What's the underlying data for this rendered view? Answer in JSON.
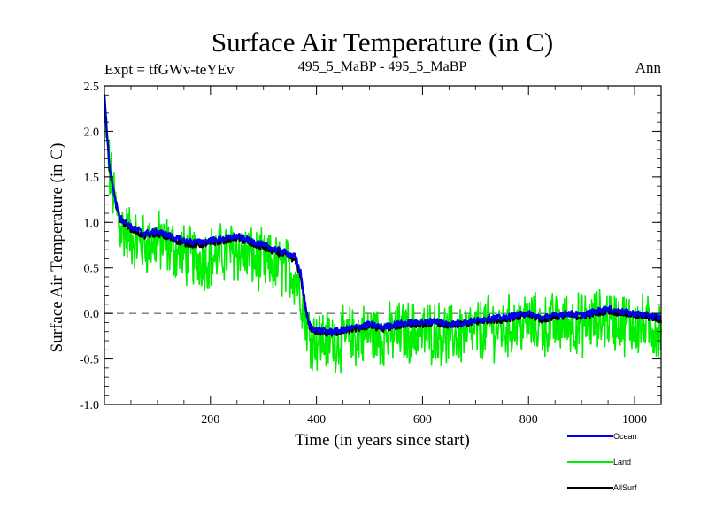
{
  "chart_data": {
    "type": "line",
    "title": "Surface Air Temperature (in C)",
    "subtitle_left": "Expt = tfGWv-teYEv",
    "subtitle_center": "495_5_MaBP - 495_5_MaBP",
    "subtitle_right": "Ann",
    "xlabel": "Time (in years since start)",
    "ylabel": "Surface Air Temperature (in C)",
    "xlim": [
      0,
      1050
    ],
    "ylim": [
      -1.0,
      2.5
    ],
    "xticks": [
      200,
      400,
      600,
      800,
      1000
    ],
    "yticks": [
      -1.0,
      -0.5,
      0.0,
      0.5,
      1.0,
      1.5,
      2.0,
      2.5
    ],
    "ytick_labels": [
      "-1.0",
      "-0.5",
      "0.0",
      "0.5",
      "1.0",
      "1.5",
      "2.0",
      "2.5"
    ],
    "zero_line": 0.0,
    "legend_placement": "bottom-right",
    "series": [
      {
        "name": "Ocean",
        "color": "#0000ee",
        "x": [
          0,
          5,
          10,
          20,
          30,
          50,
          75,
          100,
          125,
          150,
          175,
          200,
          225,
          250,
          275,
          300,
          325,
          350,
          360,
          370,
          380,
          385,
          390,
          400,
          425,
          450,
          475,
          500,
          525,
          550,
          575,
          600,
          625,
          650,
          675,
          700,
          725,
          750,
          775,
          800,
          825,
          850,
          875,
          900,
          925,
          950,
          975,
          1000,
          1025,
          1050
        ],
        "values": [
          2.4,
          1.95,
          1.6,
          1.25,
          1.05,
          0.95,
          0.88,
          0.9,
          0.85,
          0.8,
          0.78,
          0.8,
          0.82,
          0.85,
          0.8,
          0.75,
          0.7,
          0.65,
          0.62,
          0.45,
          0.05,
          -0.1,
          -0.15,
          -0.18,
          -0.2,
          -0.18,
          -0.15,
          -0.12,
          -0.15,
          -0.12,
          -0.1,
          -0.1,
          -0.08,
          -0.12,
          -0.1,
          -0.08,
          -0.05,
          -0.05,
          -0.02,
          0.0,
          -0.05,
          -0.02,
          0.0,
          -0.02,
          0.02,
          0.05,
          0.02,
          0.0,
          -0.02,
          -0.05
        ]
      },
      {
        "name": "Land",
        "color": "#00ee00",
        "x": [
          0,
          5,
          10,
          20,
          30,
          50,
          75,
          100,
          125,
          150,
          175,
          200,
          225,
          250,
          275,
          300,
          325,
          350,
          360,
          370,
          380,
          385,
          390,
          400,
          425,
          450,
          475,
          500,
          525,
          550,
          575,
          600,
          625,
          650,
          675,
          700,
          725,
          750,
          775,
          800,
          825,
          850,
          875,
          900,
          925,
          950,
          975,
          1000,
          1025,
          1050
        ],
        "values": [
          2.3,
          1.9,
          1.55,
          1.2,
          0.95,
          0.85,
          0.75,
          0.8,
          0.72,
          0.65,
          0.6,
          0.62,
          0.66,
          0.7,
          0.62,
          0.55,
          0.52,
          0.48,
          0.42,
          0.25,
          -0.05,
          -0.2,
          -0.25,
          -0.28,
          -0.3,
          -0.28,
          -0.25,
          -0.22,
          -0.25,
          -0.22,
          -0.2,
          -0.22,
          -0.2,
          -0.25,
          -0.22,
          -0.2,
          -0.15,
          -0.17,
          -0.12,
          -0.1,
          -0.15,
          -0.12,
          -0.1,
          -0.12,
          -0.08,
          -0.05,
          -0.1,
          -0.12,
          -0.15,
          -0.18
        ],
        "noise_amplitude": 0.3
      },
      {
        "name": "AllSurf",
        "color": "#000000",
        "x": [
          0,
          5,
          10,
          20,
          30,
          50,
          75,
          100,
          125,
          150,
          175,
          200,
          225,
          250,
          275,
          300,
          325,
          350,
          360,
          370,
          380,
          385,
          390,
          400,
          425,
          450,
          475,
          500,
          525,
          550,
          575,
          600,
          625,
          650,
          675,
          700,
          725,
          750,
          775,
          800,
          825,
          850,
          875,
          900,
          925,
          950,
          975,
          1000,
          1025,
          1050
        ],
        "values": [
          2.38,
          1.94,
          1.59,
          1.24,
          1.03,
          0.93,
          0.85,
          0.88,
          0.82,
          0.77,
          0.75,
          0.77,
          0.8,
          0.83,
          0.77,
          0.72,
          0.67,
          0.62,
          0.58,
          0.41,
          0.03,
          -0.12,
          -0.17,
          -0.2,
          -0.22,
          -0.2,
          -0.17,
          -0.14,
          -0.17,
          -0.14,
          -0.12,
          -0.12,
          -0.1,
          -0.14,
          -0.12,
          -0.1,
          -0.07,
          -0.07,
          -0.04,
          -0.02,
          -0.07,
          -0.04,
          -0.02,
          -0.04,
          0.0,
          0.03,
          0.0,
          -0.02,
          -0.04,
          -0.07
        ]
      }
    ]
  }
}
